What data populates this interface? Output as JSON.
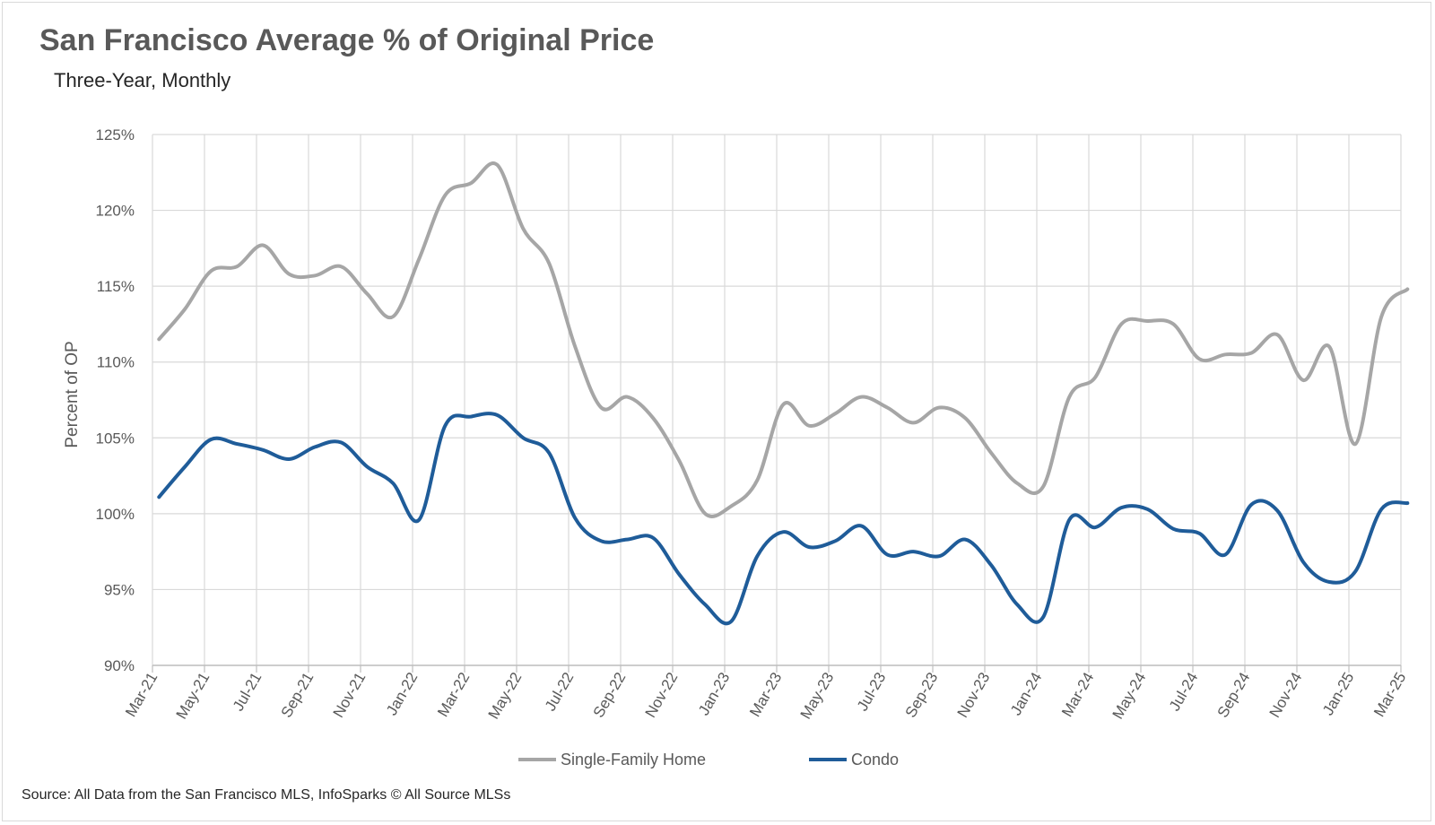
{
  "header": {
    "title": "San Francisco Average % of Original Price",
    "subtitle": "Three-Year, Monthly"
  },
  "footer": {
    "source": "Source: All Data from the San Francisco MLS, InfoSparks © All Source MLSs"
  },
  "chart_data": {
    "type": "line",
    "title": "San Francisco Average % of Original Price",
    "subtitle": "Three-Year, Monthly",
    "ylabel": "Percent of OP",
    "xlabel": "",
    "ylim": [
      90,
      125
    ],
    "yticks": [
      90,
      95,
      100,
      105,
      110,
      115,
      120,
      125
    ],
    "ytick_labels": [
      "90%",
      "95%",
      "100%",
      "105%",
      "110%",
      "115%",
      "120%",
      "125%"
    ],
    "grid": true,
    "legend_position": "bottom",
    "x": [
      "Mar-21",
      "Apr-21",
      "May-21",
      "Jun-21",
      "Jul-21",
      "Aug-21",
      "Sep-21",
      "Oct-21",
      "Nov-21",
      "Dec-21",
      "Jan-22",
      "Feb-22",
      "Mar-22",
      "Apr-22",
      "May-22",
      "Jun-22",
      "Jul-22",
      "Aug-22",
      "Sep-22",
      "Oct-22",
      "Nov-22",
      "Dec-22",
      "Jan-23",
      "Feb-23",
      "Mar-23",
      "Apr-23",
      "May-23",
      "Jun-23",
      "Jul-23",
      "Aug-23",
      "Sep-23",
      "Oct-23",
      "Nov-23",
      "Dec-23",
      "Jan-24",
      "Feb-24",
      "Mar-24",
      "Apr-24",
      "May-24",
      "Jun-24",
      "Jul-24",
      "Aug-24",
      "Sep-24",
      "Oct-24",
      "Nov-24",
      "Dec-24",
      "Jan-25",
      "Feb-25",
      "Mar-25"
    ],
    "x_tick_labels": [
      "Mar-21",
      "May-21",
      "Jul-21",
      "Sep-21",
      "Nov-21",
      "Jan-22",
      "Mar-22",
      "May-22",
      "Jul-22",
      "Sep-22",
      "Nov-22",
      "Jan-23",
      "Mar-23",
      "May-23",
      "Jul-23",
      "Sep-23",
      "Nov-23",
      "Jan-24",
      "Mar-24",
      "May-24",
      "Jul-24",
      "Sep-24",
      "Nov-24",
      "Jan-25",
      "Mar-25"
    ],
    "series": [
      {
        "name": "Single-Family Home",
        "color": "#a6a6a6",
        "values": [
          111.5,
          113.5,
          116.0,
          116.3,
          117.7,
          115.8,
          115.7,
          116.3,
          114.5,
          113.0,
          116.8,
          121.0,
          121.8,
          123.0,
          118.8,
          116.5,
          111.0,
          107.0,
          107.7,
          106.3,
          103.5,
          100.0,
          100.5,
          102.2,
          107.2,
          105.8,
          106.6,
          107.7,
          107.0,
          106.0,
          107.0,
          106.3,
          104.0,
          102.0,
          101.8,
          107.7,
          109.0,
          112.5,
          112.7,
          112.5,
          110.2,
          110.5,
          110.6,
          111.8,
          108.8,
          111.0,
          104.6,
          113.0,
          114.8
        ]
      },
      {
        "name": "Condo",
        "color": "#1f5c99",
        "values": [
          101.1,
          103.1,
          104.9,
          104.6,
          104.2,
          103.6,
          104.4,
          104.7,
          103.1,
          102.0,
          99.6,
          105.8,
          106.4,
          106.5,
          105.0,
          104.0,
          99.7,
          98.2,
          98.3,
          98.4,
          96.0,
          94.0,
          92.9,
          97.2,
          98.8,
          97.8,
          98.2,
          99.2,
          97.3,
          97.5,
          97.2,
          98.3,
          96.6,
          94.0,
          93.2,
          99.6,
          99.1,
          100.4,
          100.3,
          99.0,
          98.7,
          97.3,
          100.6,
          100.2,
          96.8,
          95.5,
          96.2,
          100.3,
          100.7
        ]
      }
    ]
  }
}
